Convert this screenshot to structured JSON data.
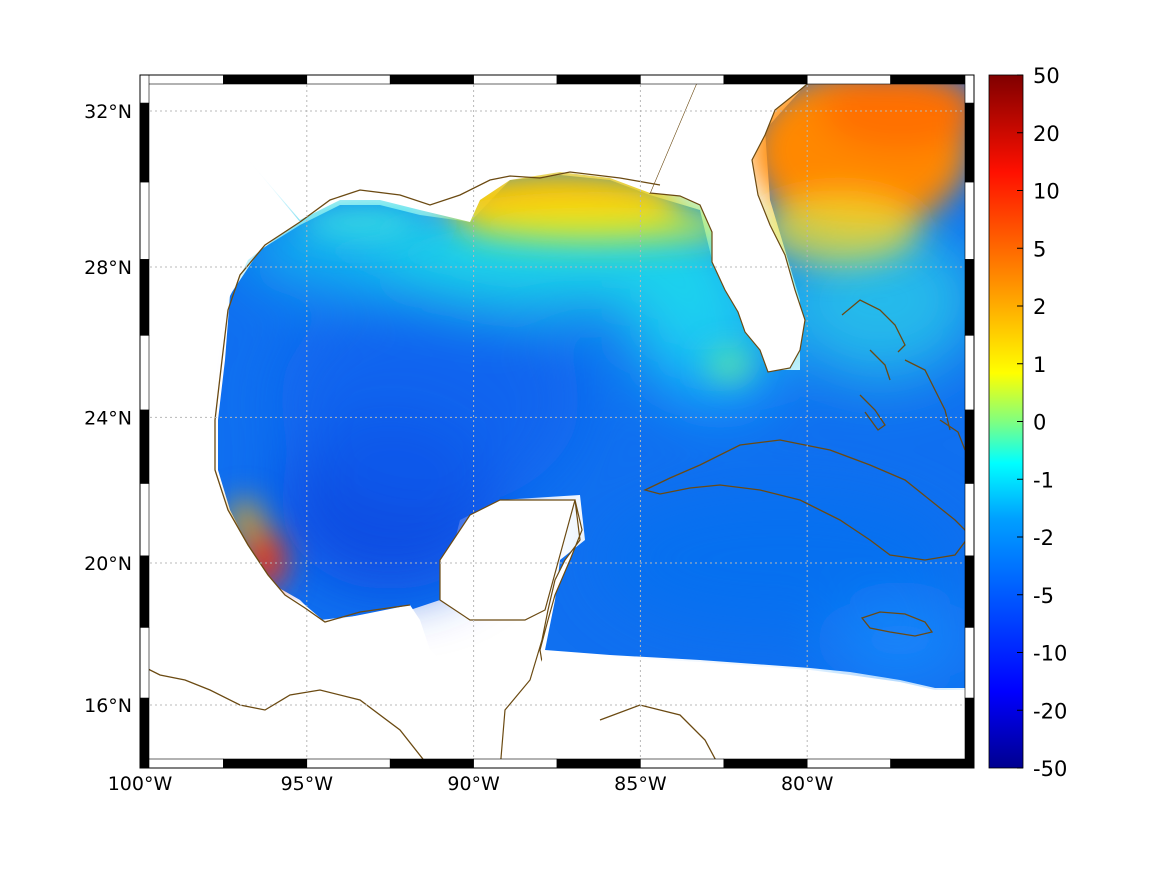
{
  "map": {
    "type": "heatmap",
    "region": "Gulf of Mexico and Caribbean",
    "projection": "Mercator",
    "lon_range": [
      -100,
      -75
    ],
    "lat_range": [
      14.2,
      32.9
    ],
    "x_ticks": [
      {
        "value": -100,
        "label": "100°W"
      },
      {
        "value": -95,
        "label": "95°W"
      },
      {
        "value": -90,
        "label": "90°W"
      },
      {
        "value": -85,
        "label": "85°W"
      },
      {
        "value": -80,
        "label": "80°W"
      }
    ],
    "y_ticks": [
      {
        "value": 32,
        "label": "32°N"
      },
      {
        "value": 28,
        "label": "28°N"
      },
      {
        "value": 24,
        "label": "24°N"
      },
      {
        "value": 20,
        "label": "20°N"
      },
      {
        "value": 16,
        "label": "16°N"
      }
    ],
    "grid": true,
    "grid_style": "dotted",
    "frame_style": "alternating black/white border",
    "colormap": "jet",
    "coastline_color": "#6b4a12",
    "land_color": "#ffffff",
    "field_features": [
      {
        "area": "northern Gulf coast (Mississippi/Alabama)",
        "lon": -88.5,
        "lat": 30.0,
        "value": 2.5
      },
      {
        "area": "Atlantic east of Florida",
        "lon": -77.5,
        "lat": 31.5,
        "value": 5
      },
      {
        "area": "Veracruz coast",
        "lon": -96.3,
        "lat": 19.8,
        "value": 10
      },
      {
        "area": "Bay of Campeche",
        "lon": -93.5,
        "lat": 21.0,
        "value": -10
      },
      {
        "area": "central Gulf",
        "lon": -91,
        "lat": 25.5,
        "value": -6
      },
      {
        "area": "Caribbean",
        "lon": -82,
        "lat": 19,
        "value": -5
      },
      {
        "area": "Florida Straits / Bahamas",
        "lon": -79,
        "lat": 25,
        "value": -2
      }
    ]
  },
  "colorbar": {
    "position": "right",
    "ticks": [
      {
        "value": 50,
        "label": "50"
      },
      {
        "value": 20,
        "label": "20"
      },
      {
        "value": 10,
        "label": "10"
      },
      {
        "value": 5,
        "label": "5"
      },
      {
        "value": 2,
        "label": "2"
      },
      {
        "value": 1,
        "label": "1"
      },
      {
        "value": 0,
        "label": "0"
      },
      {
        "value": -1,
        "label": "-1"
      },
      {
        "value": -2,
        "label": "-2"
      },
      {
        "value": -5,
        "label": "-5"
      },
      {
        "value": -10,
        "label": "-10"
      },
      {
        "value": -20,
        "label": "-20"
      },
      {
        "value": -50,
        "label": "-50"
      }
    ],
    "colors": [
      "#000080",
      "#0000ff",
      "#0080ff",
      "#00ffff",
      "#80ff80",
      "#ffff00",
      "#ff8000",
      "#ff0000",
      "#800000"
    ]
  }
}
